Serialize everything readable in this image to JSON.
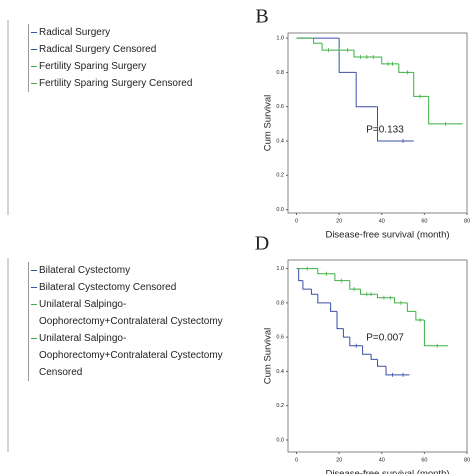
{
  "chart_data": [
    {
      "type": "km",
      "label": "B",
      "ylabel": "Cum Survival",
      "xlabel": "Disease-free survival (month)",
      "annotation": "P=0.133",
      "xlim": [
        -4,
        80
      ],
      "ylim": [
        -0.02,
        1.03
      ],
      "xticks": [
        0,
        20,
        40,
        60,
        80
      ],
      "yticks": [
        {
          "value": 0,
          "label": "0.0"
        },
        0.2,
        0.4,
        0.6,
        0.8,
        {
          "value": 1,
          "label": "1.0"
        }
      ],
      "series": [
        {
          "name": "Radical Surgery",
          "censored_name": "Radical Surgery Censored",
          "color": "#3a4fa8",
          "x": [
            0,
            20,
            28,
            38,
            55
          ],
          "values": [
            1,
            0.8,
            0.6,
            0.4,
            0.4
          ],
          "censor_x": [
            50
          ],
          "censor_values": [
            0.4
          ]
        },
        {
          "name": "Fertility Sparing Surgery",
          "censored_name": "Fertility Sparing Surgery Censored",
          "color": "#3cb043",
          "x": [
            0,
            8,
            12,
            27,
            40,
            48,
            55,
            62,
            78
          ],
          "values": [
            1,
            0.97,
            0.93,
            0.89,
            0.85,
            0.8,
            0.66,
            0.5,
            0.5
          ],
          "censor_x": [
            15,
            20,
            24,
            30,
            33,
            36,
            43,
            45,
            52,
            58,
            70
          ],
          "censor_values": [
            0.93,
            0.93,
            0.93,
            0.89,
            0.89,
            0.89,
            0.85,
            0.85,
            0.8,
            0.66,
            0.5
          ]
        }
      ]
    },
    {
      "type": "km",
      "label": "D",
      "ylabel": "Cum Survival",
      "xlabel": "Disease-free survival (month)",
      "annotation": "P=0.007",
      "xlim": [
        -4,
        80
      ],
      "ylim": [
        -0.07,
        1.05
      ],
      "xticks": [
        0,
        20,
        40,
        60,
        80
      ],
      "yticks": [
        {
          "value": 0,
          "label": "0.0"
        },
        0.2,
        0.4,
        0.6,
        0.8,
        {
          "value": 1,
          "label": "1.0"
        }
      ],
      "series": [
        {
          "name": "Bilateral Cystectomy",
          "censored_name": "Bilateral Cystectomy Censored",
          "color": "#3a4fa8",
          "x": [
            0,
            1,
            3,
            7,
            10,
            16,
            19,
            22,
            25,
            31,
            35,
            38,
            42,
            53
          ],
          "values": [
            1,
            0.93,
            0.88,
            0.85,
            0.8,
            0.75,
            0.65,
            0.6,
            0.55,
            0.5,
            0.47,
            0.43,
            0.38,
            0.38
          ],
          "censor_x": [
            28,
            45,
            50
          ],
          "censor_values": [
            0.55,
            0.38,
            0.38
          ]
        },
        {
          "name": "Unilateral Salpingo-Oophorectomy+Contralateral Cystectomy",
          "censored_name": "Unilateral Salpingo-Oophorectomy+Contralateral Cystectomy  Censored",
          "color": "#3cb043",
          "x": [
            0,
            10,
            18,
            25,
            30,
            38,
            46,
            52,
            56,
            60,
            71
          ],
          "values": [
            1,
            0.97,
            0.93,
            0.88,
            0.85,
            0.83,
            0.8,
            0.75,
            0.7,
            0.55,
            0.55
          ],
          "censor_x": [
            5,
            14,
            21,
            27,
            33,
            35,
            41,
            44,
            49,
            58,
            66
          ],
          "censor_values": [
            1,
            0.97,
            0.93,
            0.88,
            0.85,
            0.85,
            0.83,
            0.83,
            0.8,
            0.7,
            0.55
          ]
        }
      ]
    }
  ]
}
